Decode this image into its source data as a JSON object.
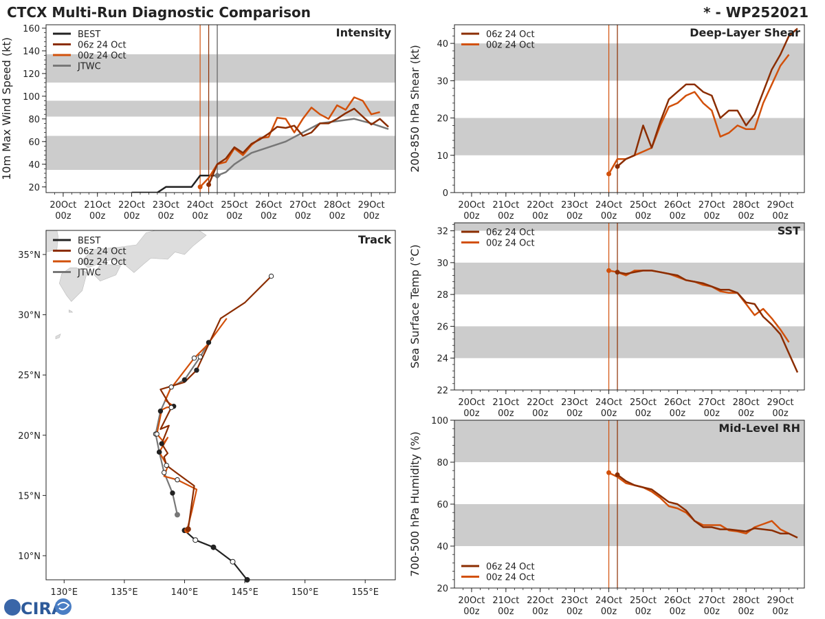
{
  "header": {
    "title": "CTCX Multi-Run Diagnostic Comparison",
    "storm_id": "* - WP252021"
  },
  "logo": {
    "text": "CIRA"
  },
  "colors": {
    "best": "#222222",
    "run06": "#8B2D00",
    "run00": "#D2500A",
    "jtwc": "#777777",
    "band": "#CCCCCC",
    "land": "#DDDDDD"
  },
  "time_axis": {
    "labels": [
      [
        "20Oct",
        "00z"
      ],
      [
        "21Oct",
        "00z"
      ],
      [
        "22Oct",
        "00z"
      ],
      [
        "23Oct",
        "00z"
      ],
      [
        "24Oct",
        "00z"
      ],
      [
        "25Oct",
        "00z"
      ],
      [
        "26Oct",
        "00z"
      ],
      [
        "27Oct",
        "00z"
      ],
      [
        "28Oct",
        "00z"
      ],
      [
        "29Oct",
        "00z"
      ]
    ],
    "range_days": [
      19.5,
      29.7
    ],
    "init_times": [
      24.0,
      24.25
    ]
  },
  "chart_data": [
    {
      "id": "intensity",
      "type": "line",
      "title": "Intensity",
      "ylabel": "10m Max Wind Speed (kt)",
      "ylim": [
        15,
        163
      ],
      "yticks": [
        20,
        40,
        60,
        80,
        100,
        120,
        140,
        160
      ],
      "bands": [
        [
          35,
          65
        ],
        [
          82,
          96
        ],
        [
          112,
          137
        ]
      ],
      "jtwc_marker": 24.5,
      "legend": [
        "BEST",
        "06z 24 Oct",
        "00z 24 Oct",
        "JTWC"
      ],
      "series": [
        {
          "name": "BEST",
          "key": "best",
          "x": [
            22.0,
            22.75,
            23.0,
            23.75,
            24.0,
            24.25,
            24.5
          ],
          "y": [
            15,
            15,
            20,
            20,
            30,
            30,
            30
          ]
        },
        {
          "name": "06z 24 Oct",
          "key": "run06",
          "x": [
            24.25,
            24.5,
            24.75,
            25.0,
            25.25,
            25.5,
            25.75,
            26.0,
            26.25,
            26.5,
            26.75,
            27.0,
            27.25,
            27.5,
            27.75,
            28.0,
            28.25,
            28.5,
            28.75,
            29.0,
            29.25,
            29.5
          ],
          "y": [
            22,
            40,
            45,
            55,
            50,
            58,
            62,
            67,
            73,
            72,
            74,
            65,
            68,
            76,
            76,
            80,
            85,
            89,
            82,
            75,
            80,
            73
          ]
        },
        {
          "name": "00z 24 Oct",
          "key": "run00",
          "x": [
            24.0,
            24.25,
            24.5,
            24.75,
            25.0,
            25.25,
            25.5,
            25.75,
            26.0,
            26.25,
            26.5,
            26.75,
            27.0,
            27.25,
            27.5,
            27.75,
            28.0,
            28.25,
            28.5,
            28.75,
            29.0,
            29.25
          ],
          "y": [
            20,
            28,
            40,
            42,
            54,
            48,
            57,
            63,
            64,
            81,
            80,
            68,
            80,
            90,
            84,
            80,
            92,
            88,
            99,
            96,
            84,
            86
          ]
        },
        {
          "name": "JTWC",
          "key": "jtwc",
          "x": [
            24.5,
            24.75,
            25.0,
            25.5,
            26.0,
            26.5,
            27.0,
            27.5,
            28.0,
            28.5,
            29.0,
            29.5
          ],
          "y": [
            30,
            33,
            40,
            50,
            55,
            60,
            68,
            76,
            78,
            80,
            76,
            71
          ]
        }
      ]
    },
    {
      "id": "shear",
      "type": "line",
      "title": "Deep-Layer Shear",
      "ylabel": "200-850 hPa Shear (kt)",
      "ylim": [
        0,
        45
      ],
      "yticks": [
        0,
        10,
        20,
        30,
        40
      ],
      "bands": [
        [
          10,
          20
        ],
        [
          30,
          40
        ]
      ],
      "legend": [
        "06z 24 Oct",
        "00z 24 Oct"
      ],
      "series": [
        {
          "name": "06z 24 Oct",
          "key": "run06",
          "x": [
            24.25,
            24.5,
            24.75,
            25.0,
            25.25,
            25.5,
            25.75,
            26.0,
            26.25,
            26.5,
            26.75,
            27.0,
            27.25,
            27.5,
            27.75,
            28.0,
            28.25,
            28.5,
            28.75,
            29.0,
            29.25,
            29.5
          ],
          "y": [
            7,
            9,
            10,
            18,
            12,
            19,
            25,
            27,
            29,
            29,
            27,
            26,
            20,
            22,
            22,
            18,
            21,
            27,
            33,
            37,
            42,
            44
          ]
        },
        {
          "name": "00z 24 Oct",
          "key": "run00",
          "x": [
            24.0,
            24.25,
            24.5,
            24.75,
            25.0,
            25.25,
            25.5,
            25.75,
            26.0,
            26.25,
            26.5,
            26.75,
            27.0,
            27.25,
            27.5,
            27.75,
            28.0,
            28.25,
            28.5,
            28.75,
            29.0,
            29.25
          ],
          "y": [
            5,
            9,
            9,
            10,
            11,
            12,
            18,
            23,
            24,
            26,
            27,
            24,
            22,
            15,
            16,
            18,
            17,
            17,
            24,
            29,
            34,
            37
          ]
        }
      ]
    },
    {
      "id": "sst",
      "type": "line",
      "title": "SST",
      "ylabel": "Sea Surface Temp (°C)",
      "ylim": [
        22,
        32.5
      ],
      "yticks": [
        22,
        24,
        26,
        28,
        30,
        32
      ],
      "bands": [
        [
          24,
          26
        ],
        [
          28,
          30
        ],
        [
          32,
          32.5
        ]
      ],
      "legend": [
        "06z 24 Oct",
        "00z 24 Oct"
      ],
      "series": [
        {
          "name": "06z 24 Oct",
          "key": "run06",
          "x": [
            24.25,
            24.5,
            24.75,
            25.0,
            25.25,
            25.5,
            25.75,
            26.0,
            26.25,
            26.5,
            26.75,
            27.0,
            27.25,
            27.5,
            27.75,
            28.0,
            28.25,
            28.5,
            28.75,
            29.0,
            29.25,
            29.5
          ],
          "y": [
            29.4,
            29.3,
            29.4,
            29.5,
            29.5,
            29.4,
            29.3,
            29.2,
            28.9,
            28.8,
            28.7,
            28.5,
            28.3,
            28.3,
            28.1,
            27.5,
            27.4,
            26.6,
            26.1,
            25.5,
            24.3,
            23.1
          ]
        },
        {
          "name": "00z 24 Oct",
          "key": "run00",
          "x": [
            24.0,
            24.25,
            24.5,
            24.75,
            25.0,
            25.25,
            25.5,
            25.75,
            26.0,
            26.25,
            26.5,
            26.75,
            27.0,
            27.25,
            27.5,
            27.75,
            28.0,
            28.25,
            28.5,
            28.75,
            29.0,
            29.25
          ],
          "y": [
            29.5,
            29.4,
            29.2,
            29.5,
            29.5,
            29.5,
            29.4,
            29.3,
            29.1,
            28.9,
            28.8,
            28.6,
            28.5,
            28.2,
            28.1,
            28.1,
            27.4,
            26.7,
            27.1,
            26.5,
            25.8,
            25.0
          ]
        }
      ]
    },
    {
      "id": "rh",
      "type": "line",
      "title": "Mid-Level RH",
      "ylabel": "700-500 hPa Humidity (%)",
      "ylim": [
        20,
        100
      ],
      "yticks": [
        20,
        40,
        60,
        80,
        100
      ],
      "bands": [
        [
          40,
          60
        ],
        [
          80,
          100
        ]
      ],
      "legend": [
        "06z 24 Oct",
        "00z 24 Oct"
      ],
      "series": [
        {
          "name": "06z 24 Oct",
          "key": "run06",
          "x": [
            24.25,
            24.5,
            24.75,
            25.0,
            25.25,
            25.5,
            25.75,
            26.0,
            26.25,
            26.5,
            26.75,
            27.0,
            27.25,
            27.5,
            27.75,
            28.0,
            28.25,
            28.5,
            28.75,
            29.0,
            29.25,
            29.5
          ],
          "y": [
            74,
            71,
            69,
            68,
            67,
            64,
            61,
            60,
            57,
            52,
            49,
            49,
            48,
            48,
            47.5,
            47,
            48.5,
            48,
            47.5,
            46,
            46,
            44
          ]
        },
        {
          "name": "00z 24 Oct",
          "key": "run00",
          "x": [
            24.0,
            24.25,
            24.5,
            24.75,
            25.0,
            25.25,
            25.5,
            25.75,
            26.0,
            26.25,
            26.5,
            26.75,
            27.0,
            27.25,
            27.5,
            27.75,
            28.0,
            28.25,
            28.5,
            28.75,
            29.0,
            29.25
          ],
          "y": [
            75,
            73,
            70,
            69,
            68,
            66,
            63,
            59,
            58,
            56,
            52,
            50,
            50,
            50,
            47.5,
            47,
            46,
            49,
            50.5,
            52,
            48,
            46
          ]
        }
      ]
    },
    {
      "id": "track",
      "type": "scatter",
      "title": "Track",
      "xlim": [
        128.5,
        157.5
      ],
      "ylim": [
        8.0,
        37.0
      ],
      "xticks": [
        "130°E",
        "135°E",
        "140°E",
        "145°E",
        "150°E",
        "155°E"
      ],
      "xtick_values": [
        130,
        135,
        140,
        145,
        150,
        155
      ],
      "yticks": [
        "10°N",
        "15°N",
        "20°N",
        "25°N",
        "30°N",
        "35°N"
      ],
      "ytick_values": [
        10,
        15,
        20,
        25,
        30,
        35
      ],
      "legend": [
        "BEST",
        "06z 24 Oct",
        "00z 24 Oct",
        "JTWC"
      ],
      "series": [
        {
          "name": "BEST",
          "key": "best",
          "lon": [
            145.2,
            144.0,
            142.4,
            140.9,
            140.0,
            140.3
          ],
          "lat": [
            8.0,
            9.5,
            10.7,
            11.3,
            12.1,
            12.2
          ]
        },
        {
          "name": "06z 24 Oct",
          "key": "run06",
          "lon": [
            140.3,
            140.8,
            139.3,
            138.5,
            138.3,
            138.6,
            138.1,
            138.7,
            138.0,
            138.9,
            138.0,
            140.0,
            141.0,
            143.0,
            145.0,
            147.2
          ],
          "lat": [
            12.2,
            15.8,
            16.9,
            17.5,
            18.2,
            18.5,
            19.3,
            20.8,
            20.5,
            22.3,
            23.8,
            24.4,
            25.4,
            29.7,
            31.0,
            33.2
          ]
        },
        {
          "name": "00z 24 Oct",
          "key": "run00",
          "lon": [
            140.2,
            140.6,
            141.0,
            139.4,
            138.3,
            138.6,
            137.9,
            138.6,
            138.3,
            137.7,
            138.1,
            138.5,
            139.1,
            138.4,
            138.8,
            140.8,
            141.8,
            143.5
          ],
          "lat": [
            12.1,
            13.7,
            15.5,
            16.3,
            16.6,
            17.4,
            18.6,
            19.8,
            19.4,
            20.1,
            22.1,
            22.3,
            22.4,
            22.9,
            23.8,
            26.4,
            27.4,
            29.7
          ]
        },
        {
          "name": "JTWC",
          "key": "jtwc",
          "lon": [
            139.4,
            139.0,
            138.3,
            137.9,
            137.6,
            138.0,
            138.9,
            140.0,
            141.3,
            142.0
          ],
          "lat": [
            13.4,
            15.2,
            16.9,
            18.6,
            20.1,
            22.0,
            24.0,
            24.6,
            26.5,
            27.7
          ]
        }
      ]
    }
  ]
}
